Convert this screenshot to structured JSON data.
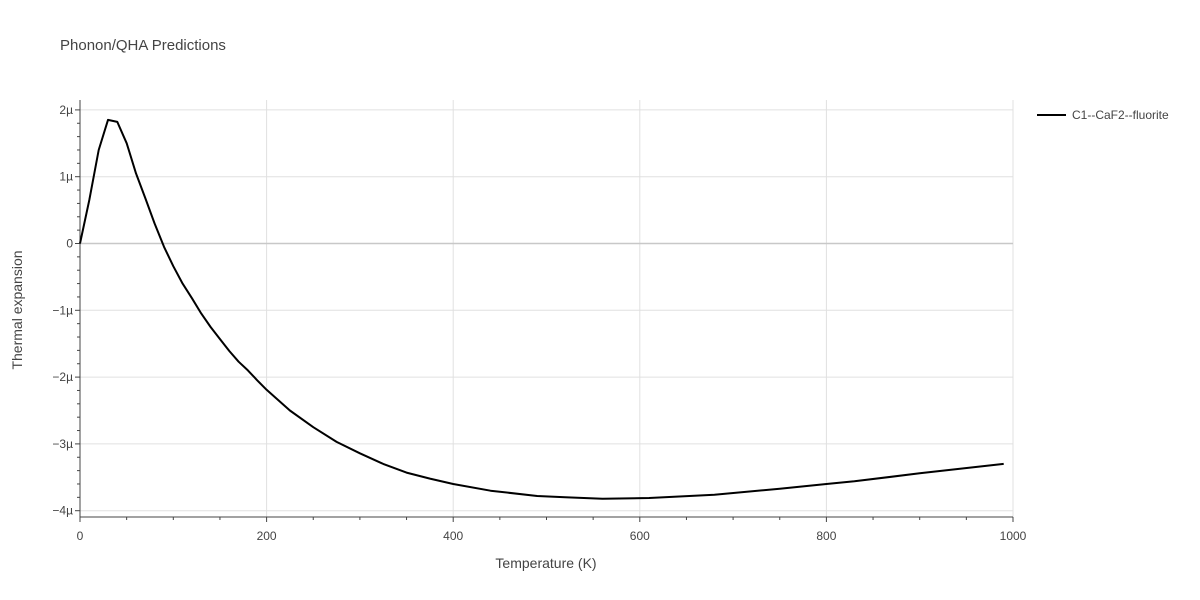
{
  "chart_data": {
    "type": "line",
    "title": "Phonon/QHA Predictions",
    "xlabel": "Temperature (K)",
    "ylabel": "Thermal expansion",
    "xlim": [
      0,
      1000
    ],
    "ylim": [
      -4.1,
      2.15
    ],
    "x_ticks": [
      0,
      200,
      400,
      600,
      800,
      1000
    ],
    "x_tick_labels": [
      "0",
      "200",
      "400",
      "600",
      "800",
      "1000"
    ],
    "y_ticks": [
      -4,
      -3,
      -2,
      -1,
      0,
      1,
      2
    ],
    "y_tick_labels": [
      "−4µ",
      "−3µ",
      "−2µ",
      "−1µ",
      "0",
      "1µ",
      "2µ"
    ],
    "y_unit_note": "values in units of 1e-6",
    "grid": true,
    "legend_position": "top-right outside",
    "series": [
      {
        "name": "C1--CaF2--fluorite",
        "color": "#000000",
        "x": [
          0,
          10,
          20,
          30,
          40,
          50,
          60,
          70,
          80,
          90,
          100,
          110,
          120,
          130,
          140,
          150,
          160,
          170,
          180,
          190,
          200,
          225,
          250,
          275,
          300,
          325,
          350,
          375,
          400,
          440,
          490,
          520,
          560,
          610,
          680,
          750,
          800,
          830,
          900,
          990
        ],
        "y": [
          0.0,
          0.65,
          1.4,
          1.85,
          1.82,
          1.5,
          1.05,
          0.68,
          0.3,
          -0.05,
          -0.34,
          -0.6,
          -0.82,
          -1.05,
          -1.25,
          -1.43,
          -1.61,
          -1.77,
          -1.9,
          -2.05,
          -2.19,
          -2.5,
          -2.75,
          -2.97,
          -3.14,
          -3.3,
          -3.43,
          -3.52,
          -3.6,
          -3.7,
          -3.78,
          -3.8,
          -3.82,
          -3.81,
          -3.76,
          -3.67,
          -3.6,
          -3.56,
          -3.44,
          -3.3
        ]
      }
    ]
  }
}
